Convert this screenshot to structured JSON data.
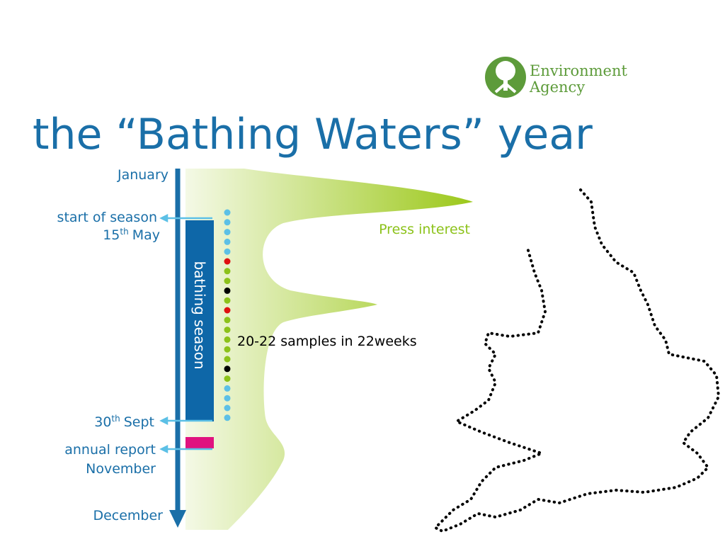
{
  "logo": {
    "line1": "Environment",
    "line2": "Agency"
  },
  "title": "the “Bathing Waters” year",
  "timeline": {
    "start": "January",
    "season_start": "start of season",
    "season_start_day": "15",
    "season_start_suffix": "th",
    "season_start_month": "May",
    "season_end_day": "30",
    "season_end_suffix": "th",
    "season_end_month": "Sept",
    "report": "annual report",
    "report_month": "November",
    "end": "December"
  },
  "season_label": "bathing season",
  "press": "Press interest",
  "samples": "20-22 samples in 22weeks"
}
